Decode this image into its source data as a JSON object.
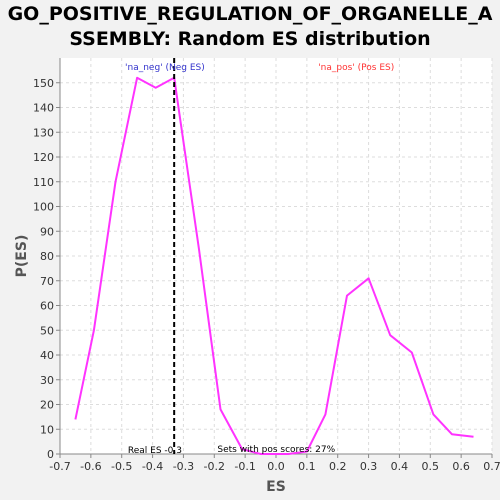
{
  "chart_data": {
    "type": "line",
    "title_line1": "GO_POSITIVE_REGULATION_OF_ORGANELLE_A",
    "title_line2": "SSEMBLY: Random ES distribution",
    "xlabel": "ES",
    "ylabel": "P(ES)",
    "xlim": [
      -0.7,
      0.7
    ],
    "ylim": [
      0,
      160
    ],
    "xticks": [
      "-0.7",
      "-0.6",
      "-0.5",
      "-0.4",
      "-0.3",
      "-0.2",
      "-0.1",
      "0.0",
      "0.1",
      "0.2",
      "0.3",
      "0.4",
      "0.5",
      "0.6",
      "0.7"
    ],
    "yticks": [
      "0",
      "10",
      "20",
      "30",
      "40",
      "50",
      "60",
      "70",
      "80",
      "90",
      "100",
      "110",
      "120",
      "130",
      "140",
      "150"
    ],
    "grid": true,
    "series": [
      {
        "color": "#ff33ff",
        "x": [
          -0.65,
          -0.59,
          -0.52,
          -0.45,
          -0.39,
          -0.33,
          -0.25,
          -0.18,
          -0.11,
          -0.05,
          0.04,
          0.1,
          0.16,
          0.23,
          0.3,
          0.37,
          0.44,
          0.51,
          0.57,
          0.64
        ],
        "y": [
          14,
          50,
          110,
          152,
          148,
          152,
          83,
          18,
          2,
          0,
          0,
          1,
          16,
          64,
          71,
          48,
          41,
          16,
          8,
          7
        ]
      }
    ],
    "real_es": -0.33,
    "annotations": {
      "neg_label": "'na_neg' (Neg ES)",
      "neg_color": "#3333cc",
      "pos_label": "'na_pos' (Pos ES)",
      "pos_color": "#ff3333",
      "real_es_label": "Real ES -0.3",
      "pos_scores_label": "Sets with pos scores: 27%"
    }
  }
}
